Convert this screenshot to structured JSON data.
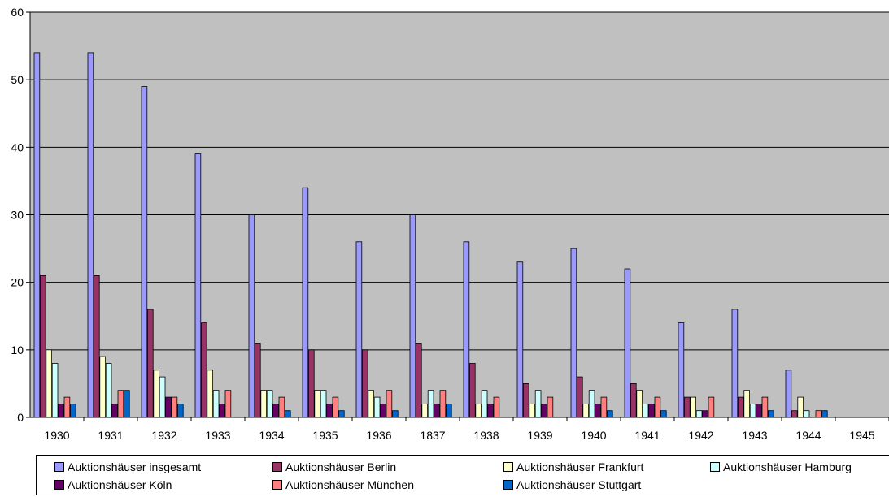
{
  "chart_data": {
    "type": "bar",
    "title": "",
    "xlabel": "",
    "ylabel": "",
    "ylim": [
      0,
      60
    ],
    "yticks": [
      0,
      10,
      20,
      30,
      40,
      50,
      60
    ],
    "grid": true,
    "legend_position": "bottom",
    "background_color": "#c0c0c0",
    "categories": [
      "1930",
      "1931",
      "1932",
      "1933",
      "1934",
      "1935",
      "1936",
      "1837",
      "1938",
      "1939",
      "1940",
      "1941",
      "1942",
      "1943",
      "1944",
      "1945"
    ],
    "series": [
      {
        "name": "Auktionshäuser insgesamt",
        "color": "#9999ff",
        "values": [
          54,
          54,
          49,
          39,
          30,
          34,
          26,
          30,
          26,
          23,
          25,
          22,
          14,
          16,
          7,
          0
        ]
      },
      {
        "name": "Auktionshäuser Berlin",
        "color": "#993366",
        "values": [
          21,
          21,
          16,
          14,
          11,
          10,
          10,
          11,
          8,
          5,
          6,
          5,
          3,
          3,
          1,
          0
        ]
      },
      {
        "name": "Auktionshäuser Frankfurt",
        "color": "#ffffcc",
        "values": [
          10,
          9,
          7,
          7,
          4,
          4,
          4,
          2,
          2,
          2,
          2,
          4,
          3,
          4,
          3,
          0
        ]
      },
      {
        "name": "Auktionshäuser Hamburg",
        "color": "#ccffff",
        "values": [
          8,
          8,
          6,
          4,
          4,
          4,
          3,
          4,
          4,
          4,
          4,
          2,
          1,
          2,
          1,
          0
        ]
      },
      {
        "name": "Auktionshäuser Köln",
        "color": "#660066",
        "values": [
          2,
          2,
          3,
          2,
          2,
          2,
          2,
          2,
          2,
          2,
          2,
          2,
          1,
          2,
          0,
          0
        ]
      },
      {
        "name": "Auktionshäuser München",
        "color": "#ff8080",
        "values": [
          3,
          4,
          3,
          4,
          3,
          3,
          4,
          4,
          3,
          3,
          3,
          3,
          3,
          3,
          1,
          0
        ]
      },
      {
        "name": "Auktionshäuser Stuttgart",
        "color": "#0066cc",
        "values": [
          2,
          4,
          2,
          0,
          1,
          1,
          1,
          2,
          0,
          0,
          1,
          1,
          0,
          1,
          1,
          0
        ]
      }
    ]
  }
}
